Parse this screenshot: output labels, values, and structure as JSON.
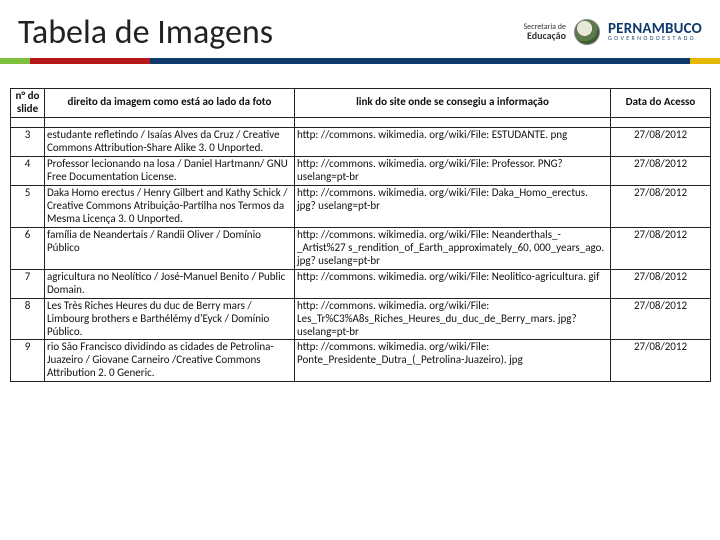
{
  "title": "Tabela de Imagens",
  "logo_edu_l1": "Secretaria de",
  "logo_edu_l2": "Educação",
  "logo_pe_big": "PERNAMBUCO",
  "logo_pe_sm": "G O V E R N O   D O   E S T A D O",
  "stripe_colors": {
    "s1": "#7fbf3f",
    "s2": "#b51818",
    "s3": "#0d3a6b",
    "s4": "#e6b800"
  },
  "columns": {
    "c0": "n° do slide",
    "c1": "direito da imagem como está ao lado da foto",
    "c2": "link do site onde se consegiu a informação",
    "c3": "Data do Acesso"
  },
  "rows": [
    {
      "n": "3",
      "d": "estudante refletindo / Isaías Alves da Cruz / Creative Commons Attribution-Share Alike 3. 0 Unported.",
      "l": "http: //commons. wikimedia. org/wiki/File: ESTUDANTE. png",
      "dt": "27/08/2012"
    },
    {
      "n": "4",
      "d": "Professor lecionando na losa  / Daniel Hartmann/ GNU Free Documentation License.",
      "l": "http: //commons. wikimedia. org/wiki/File: Professor. PNG? uselang=pt-br",
      "dt": "27/08/2012"
    },
    {
      "n": "5",
      "d": "Daka Homo erectus / Henry Gilbert and Kathy Schick / Creative Commons Atribuição-Partilha nos Termos da Mesma Licença  3. 0 Unported.",
      "l": "http: //commons. wikimedia. org/wiki/File: Daka_Homo_erectus. jpg? uselang=pt-br",
      "dt": "27/08/2012"
    },
    {
      "n": "6",
      "d": "família de Neandertais / Randii Oliver / Domínio Público",
      "l": "http: //commons. wikimedia. org/wiki/File: Neanderthals_-_Artist%27 s_rendition_of_Earth_approximately_60, 000_years_ago. jpg? uselang=pt-br",
      "dt": "27/08/2012"
    },
    {
      "n": "7",
      "d": "agricultura no Neolítico / José-Manuel Benito /  Public Domain.",
      "l": "http: //commons. wikimedia. org/wiki/File: Neolitico-agricultura. gif",
      "dt": "27/08/2012"
    },
    {
      "n": "8",
      "d": "Les Très Riches Heures du duc de Berry mars / Limbourg brothers e Barthélémy d'Eyck / Domínio Público.",
      "l": "http: //commons. wikimedia. org/wiki/File: Les_Tr%C3%A8s_Riches_Heures_du_duc_de_Berry_mars. jpg? uselang=pt-br",
      "dt": "27/08/2012"
    },
    {
      "n": "9",
      "d": "rio São Francisco dividindo as cidades de Petrolina-Juazeiro / Giovane Carneiro /Creative Commons Attribution 2. 0 Generic.",
      "l": "http: //commons. wikimedia. org/wiki/File: Ponte_Presidente_Dutra_(_Petrolina-Juazeiro). jpg",
      "dt": "27/08/2012"
    }
  ]
}
